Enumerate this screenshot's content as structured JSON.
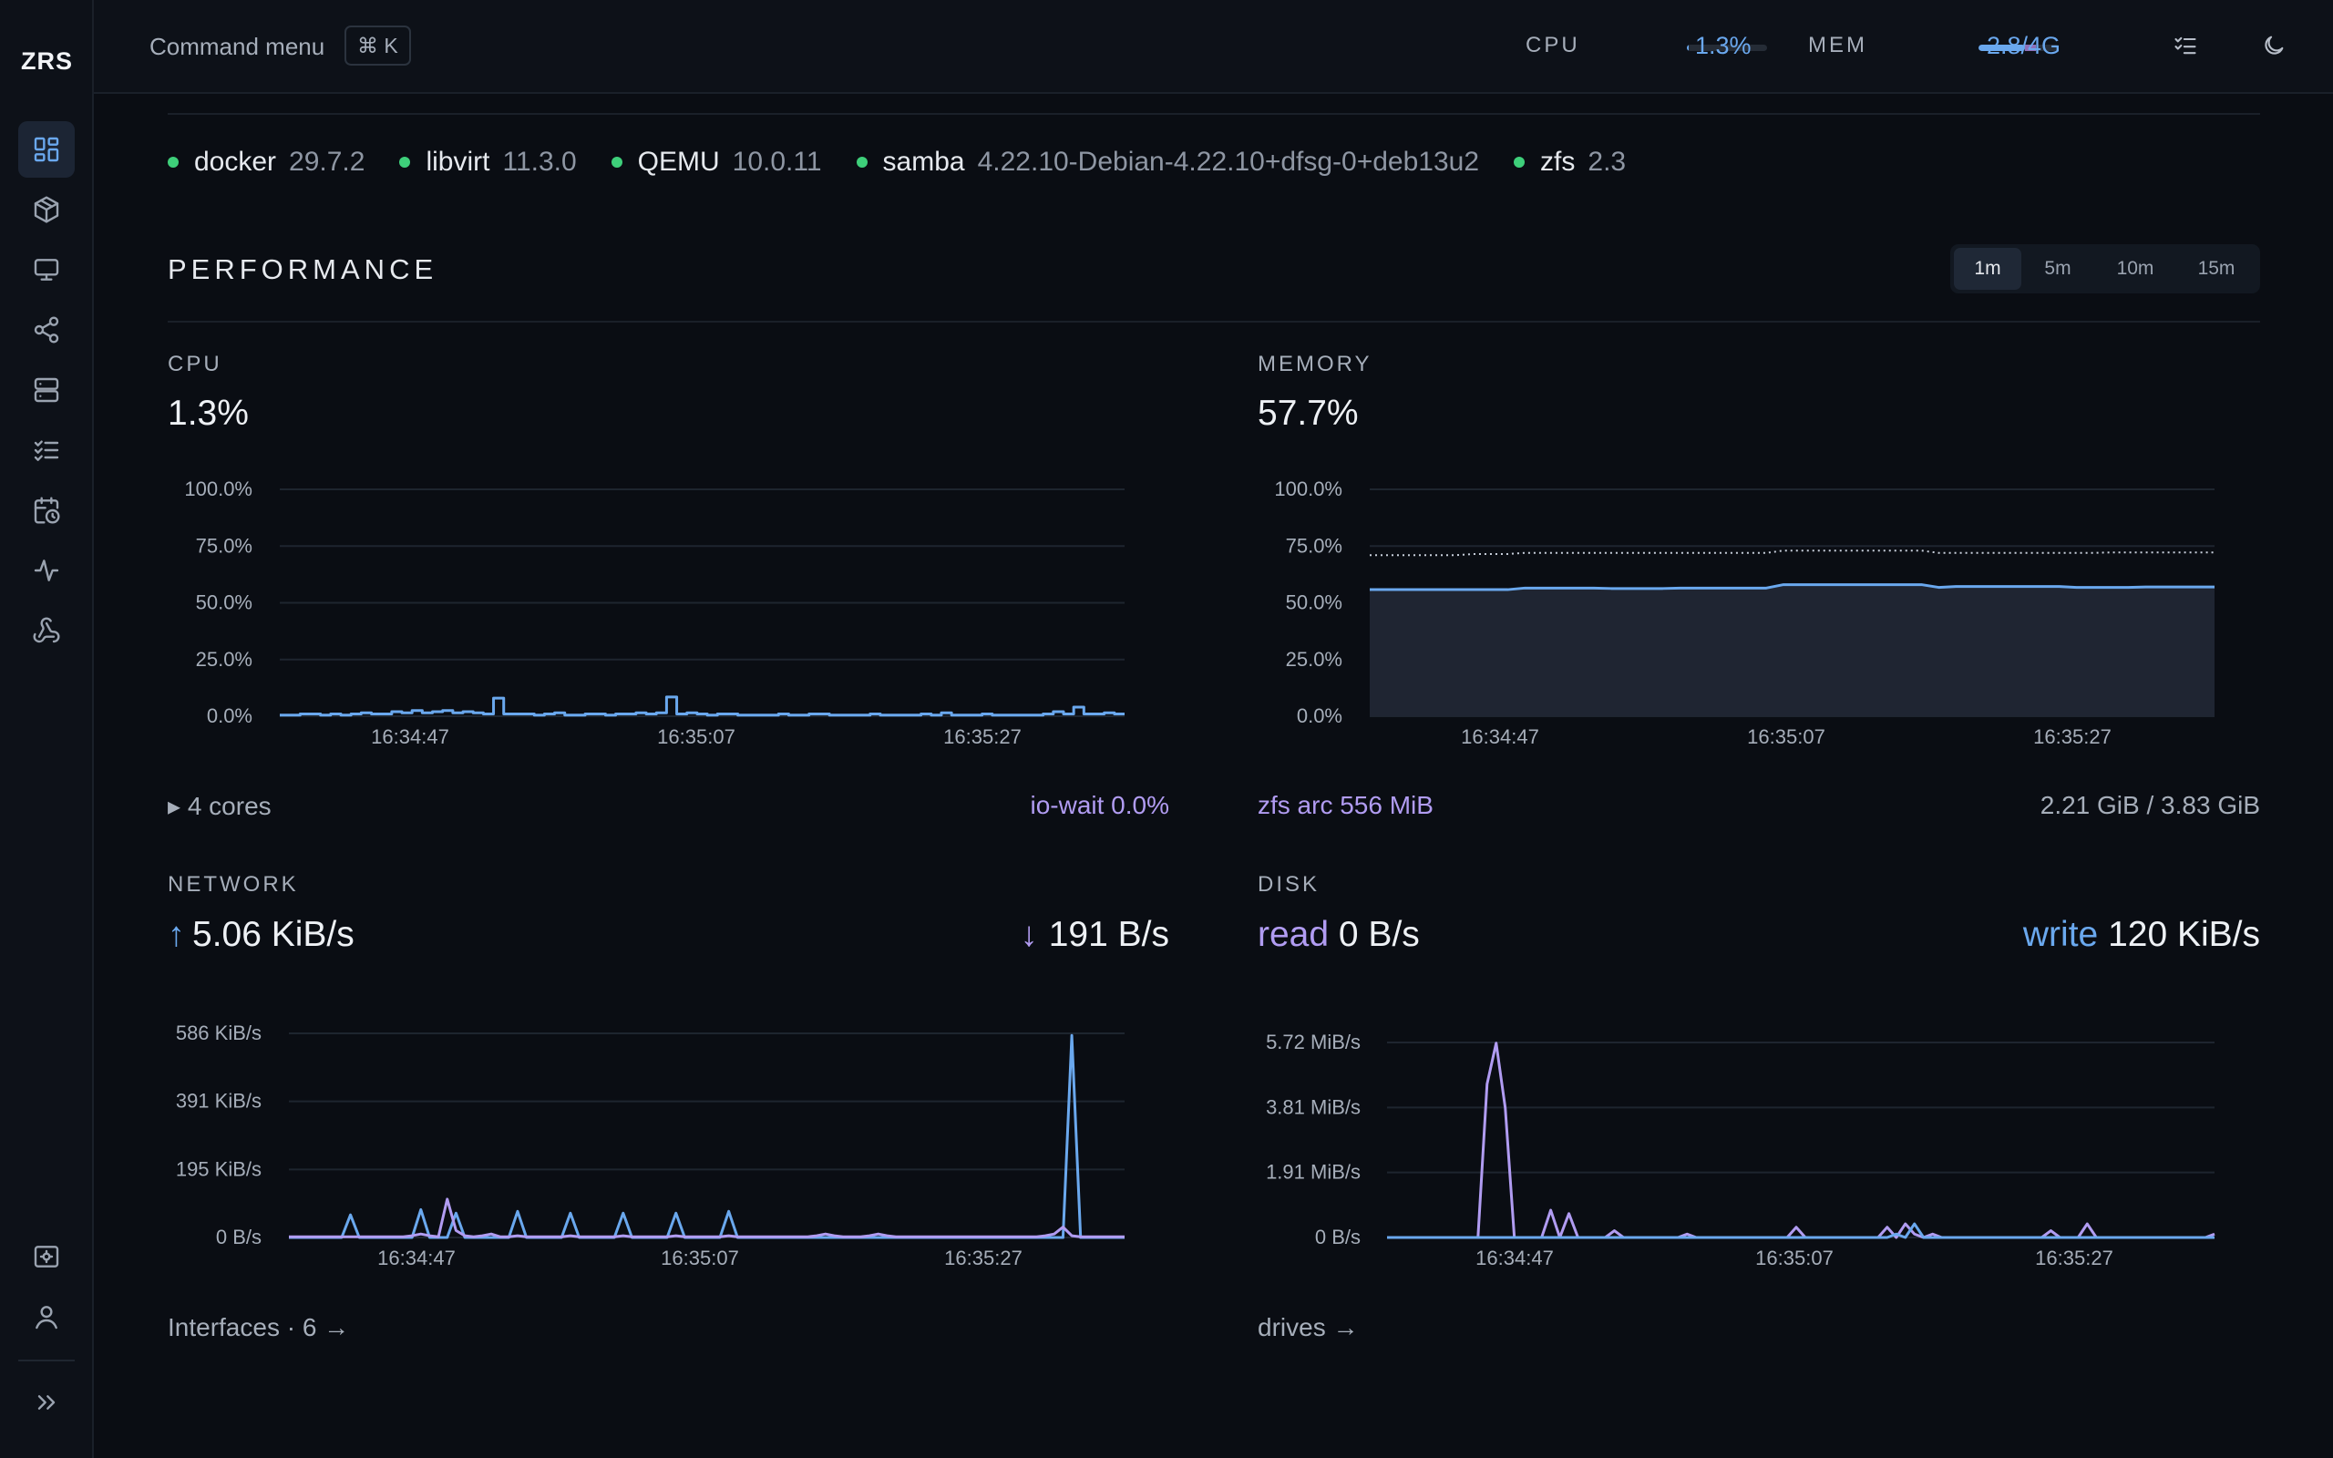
{
  "app": {
    "logo": "ZRS"
  },
  "sidebar": {
    "items": [
      {
        "name": "dashboard",
        "icon": "dashboard-icon",
        "active": true
      },
      {
        "name": "containers",
        "icon": "box-icon"
      },
      {
        "name": "vms",
        "icon": "monitor-icon"
      },
      {
        "name": "network",
        "icon": "share-icon"
      },
      {
        "name": "storage",
        "icon": "server-icon"
      },
      {
        "name": "tasks",
        "icon": "checklist-icon"
      },
      {
        "name": "schedules",
        "icon": "calendar-clock-icon"
      },
      {
        "name": "activity",
        "icon": "pulse-icon"
      },
      {
        "name": "webhooks",
        "icon": "webhook-icon"
      }
    ],
    "bottom": [
      {
        "name": "settings",
        "icon": "settings-box-icon"
      },
      {
        "name": "user",
        "icon": "user-icon"
      },
      {
        "name": "expand",
        "icon": "chevrons-right-icon"
      }
    ]
  },
  "topbar": {
    "command_menu": "Command menu",
    "shortcut": "⌘ K",
    "cpu_label": "CPU",
    "cpu_value": "1.3%",
    "cpu_fraction": 0.013,
    "mem_label": "MEM",
    "mem_value": "2.8/4G",
    "mem_fraction": 0.58,
    "mem_cache_fraction": 0.14
  },
  "services": [
    {
      "name": "docker",
      "version": "29.7.2"
    },
    {
      "name": "libvirt",
      "version": "11.3.0"
    },
    {
      "name": "QEMU",
      "version": "10.0.11"
    },
    {
      "name": "samba",
      "version": "4.22.10-Debian-4.22.10+dfsg-0+deb13u2"
    },
    {
      "name": "zfs",
      "version": "2.3"
    }
  ],
  "performance": {
    "title": "PERFORMANCE",
    "ranges": [
      "1m",
      "5m",
      "10m",
      "15m"
    ],
    "active_range": "1m",
    "cpu": {
      "label": "CPU",
      "value": "1.3%",
      "cores_label": "▸ 4 cores",
      "io_wait": "io-wait 0.0%"
    },
    "memory": {
      "label": "MEMORY",
      "value": "57.7%",
      "zfs_arc": "zfs arc 556 MiB",
      "usage": "2.21 GiB / 3.83 GiB"
    },
    "network": {
      "label": "NETWORK",
      "up": "5.06 KiB/s",
      "down": "191 B/s",
      "footer": "Interfaces · 6 →"
    },
    "disk": {
      "label": "DISK",
      "read_label": "read",
      "read": "0 B/s",
      "write_label": "write",
      "write": "120 KiB/s",
      "footer": "drives →"
    }
  },
  "chart_data": [
    {
      "type": "line",
      "title": "CPU",
      "x_ticks": [
        "16:34:47",
        "16:35:07",
        "16:35:27"
      ],
      "y_ticks": [
        "0.0%",
        "25.0%",
        "50.0%",
        "75.0%",
        "100.0%"
      ],
      "ylim": [
        0,
        100
      ],
      "series": [
        {
          "color": "#6aa8ee",
          "values": [
            0.5,
            0.5,
            1,
            1,
            0.5,
            1,
            0.5,
            1,
            1.5,
            1,
            1,
            2,
            1.5,
            2.5,
            1.5,
            2,
            2.5,
            1.5,
            2,
            1.5,
            1,
            8,
            1,
            1,
            1,
            0.5,
            1,
            1.5,
            0.5,
            0.5,
            1,
            1,
            0.5,
            1,
            1,
            1.5,
            1,
            1.5,
            8.5,
            1,
            1.5,
            1,
            0.5,
            1,
            1,
            0.5,
            0.5,
            0.5,
            0.5,
            1,
            0.5,
            0.5,
            1,
            1,
            0.5,
            0.5,
            0.5,
            0.5,
            1,
            0.5,
            0.5,
            0.5,
            0.5,
            1,
            0.5,
            1.5,
            0.5,
            0.5,
            0.5,
            1,
            0.5,
            0.5,
            0.5,
            0.5,
            0.5,
            1,
            2,
            1,
            4,
            1,
            1,
            1.5,
            1,
            1
          ]
        }
      ]
    },
    {
      "type": "area",
      "title": "MEMORY",
      "x_ticks": [
        "16:34:47",
        "16:35:07",
        "16:35:27"
      ],
      "y_ticks": [
        "0.0%",
        "25.0%",
        "50.0%",
        "75.0%",
        "100.0%"
      ],
      "ylim": [
        0,
        100
      ],
      "series": [
        {
          "color": "#6aa8ee",
          "values": [
            55.8,
            55.8,
            55.8,
            55.8,
            55.8,
            55.8,
            55.8,
            55.8,
            55.8,
            56.5,
            56.5,
            56.5,
            56.5,
            56.5,
            56.3,
            56.3,
            56.3,
            56.3,
            56.5,
            56.5,
            56.5,
            56.5,
            56.5,
            56.5,
            58,
            58,
            58,
            58,
            58,
            58,
            58,
            58,
            58,
            56.8,
            57.2,
            57.2,
            57.2,
            57.2,
            57.2,
            57.2,
            57.2,
            56.8,
            56.8,
            56.8,
            56.8,
            57,
            57,
            57,
            57,
            57
          ]
        },
        {
          "color": "#c8cfdb",
          "style": "dotted",
          "values": [
            71,
            71,
            71,
            71,
            71,
            71,
            71.5,
            71.5,
            71.5,
            72,
            72,
            72,
            72,
            72,
            72,
            72,
            72,
            72,
            72,
            72,
            72,
            72,
            72,
            72,
            73,
            73,
            73,
            73,
            73,
            73,
            73,
            73,
            73,
            72,
            72,
            72,
            72,
            72,
            72,
            72,
            72,
            72,
            72,
            72.2,
            72.2,
            72.2,
            72.2,
            72.2,
            72.2,
            72.2
          ]
        }
      ]
    },
    {
      "type": "line",
      "title": "NETWORK",
      "x_ticks": [
        "16:34:47",
        "16:35:07",
        "16:35:27"
      ],
      "y_ticks": [
        "0 B/s",
        "195 KiB/s",
        "391 KiB/s",
        "586 KiB/s"
      ],
      "ylim": [
        0,
        586
      ],
      "series": [
        {
          "color": "#6aa8ee",
          "values": [
            0,
            0,
            0,
            0,
            0,
            0,
            0,
            65,
            0,
            0,
            0,
            0,
            0,
            0,
            0,
            80,
            0,
            0,
            0,
            70,
            0,
            0,
            0,
            0,
            0,
            0,
            75,
            0,
            0,
            0,
            0,
            0,
            70,
            0,
            0,
            0,
            0,
            0,
            70,
            0,
            0,
            0,
            0,
            0,
            70,
            0,
            0,
            0,
            0,
            0,
            75,
            0,
            0,
            0,
            0,
            0,
            0,
            0,
            0,
            0,
            0,
            0,
            0,
            0,
            0,
            0,
            0,
            0,
            0,
            0,
            0,
            0,
            0,
            0,
            0,
            0,
            0,
            0,
            0,
            0,
            0,
            0,
            0,
            0,
            0,
            0,
            0,
            0,
            0,
            580,
            0,
            0,
            0,
            0,
            0,
            0
          ]
        },
        {
          "color": "#b19cf2",
          "values": [
            2,
            2,
            2,
            2,
            2,
            2,
            2,
            2,
            2,
            2,
            2,
            2,
            2,
            2,
            5,
            10,
            5,
            2,
            110,
            20,
            5,
            2,
            5,
            10,
            2,
            2,
            5,
            2,
            2,
            2,
            2,
            2,
            5,
            2,
            2,
            2,
            2,
            2,
            5,
            2,
            2,
            2,
            2,
            2,
            5,
            2,
            2,
            2,
            2,
            2,
            5,
            2,
            2,
            2,
            2,
            2,
            2,
            2,
            2,
            2,
            5,
            10,
            5,
            2,
            2,
            2,
            5,
            10,
            5,
            2,
            2,
            2,
            2,
            2,
            2,
            2,
            2,
            2,
            2,
            2,
            2,
            2,
            2,
            2,
            2,
            2,
            5,
            10,
            30,
            5,
            2,
            2,
            2,
            2,
            2,
            2
          ]
        }
      ]
    },
    {
      "type": "line",
      "title": "DISK",
      "x_ticks": [
        "16:34:47",
        "16:35:07",
        "16:35:27"
      ],
      "y_ticks": [
        "0 B/s",
        "1.91 MiB/s",
        "3.81 MiB/s",
        "5.72 MiB/s"
      ],
      "ylim": [
        0,
        5.72
      ],
      "series": [
        {
          "color": "#b19cf2",
          "values": [
            0,
            0,
            0,
            0,
            0,
            0,
            0,
            0,
            0,
            0,
            0,
            4.5,
            5.7,
            3.8,
            0,
            0,
            0,
            0,
            0.8,
            0,
            0.7,
            0,
            0,
            0,
            0,
            0.2,
            0,
            0,
            0,
            0,
            0,
            0,
            0,
            0.1,
            0,
            0,
            0,
            0,
            0,
            0,
            0,
            0,
            0,
            0,
            0,
            0.3,
            0,
            0,
            0,
            0,
            0,
            0,
            0,
            0,
            0,
            0.3,
            0,
            0.4,
            0.1,
            0,
            0.1,
            0,
            0,
            0,
            0,
            0,
            0,
            0,
            0,
            0,
            0,
            0,
            0,
            0.2,
            0,
            0,
            0,
            0.4,
            0,
            0,
            0,
            0,
            0,
            0,
            0,
            0,
            0,
            0,
            0,
            0,
            0,
            0.1
          ]
        },
        {
          "color": "#6aa8ee",
          "values": [
            0,
            0,
            0,
            0,
            0,
            0,
            0,
            0,
            0,
            0,
            0,
            0,
            0,
            0,
            0,
            0,
            0,
            0,
            0,
            0,
            0,
            0,
            0,
            0,
            0,
            0,
            0,
            0,
            0,
            0,
            0,
            0,
            0,
            0,
            0,
            0,
            0,
            0,
            0,
            0,
            0,
            0,
            0,
            0,
            0,
            0,
            0,
            0,
            0,
            0,
            0,
            0,
            0,
            0,
            0,
            0,
            0.1,
            0,
            0.4,
            0,
            0,
            0,
            0,
            0,
            0,
            0,
            0,
            0,
            0,
            0,
            0,
            0,
            0,
            0,
            0,
            0,
            0,
            0,
            0,
            0,
            0,
            0,
            0,
            0,
            0,
            0,
            0,
            0,
            0,
            0,
            0,
            0
          ]
        }
      ]
    }
  ]
}
